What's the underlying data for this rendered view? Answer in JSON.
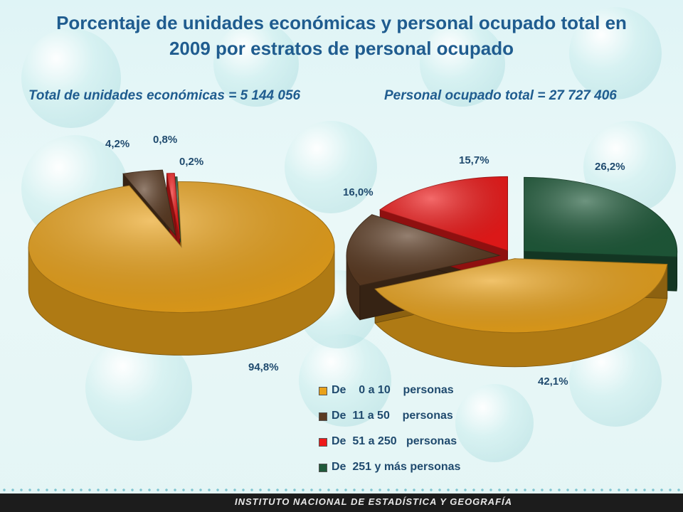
{
  "title_line1": "Porcentaje de unidades económicas y personal ocupado total en",
  "title_line2": "2009 por estratos de personal ocupado",
  "footer": "INSTITUTO NACIONAL DE ESTADÍSTICA Y GEOGRAFÍA",
  "colors": {
    "c0": "#e9a21b",
    "c1": "#5a3a22",
    "c2": "#ee1a1a",
    "c3": "#1f5a3a"
  },
  "chart_data": [
    {
      "type": "pie",
      "title": "Total de unidades económicas = 5 144 056",
      "categories": [
        "De 0 a 10 personas",
        "De 11 a 50 personas",
        "De 51 a 250 personas",
        "De 251 y más personas"
      ],
      "values": [
        94.8,
        4.2,
        0.8,
        0.2
      ],
      "value_labels": [
        "94,8%",
        "4,2%",
        "0,8%",
        "0,2%"
      ],
      "legend": "bottom-right"
    },
    {
      "type": "pie",
      "title": "Personal ocupado total = 27 727 406",
      "categories": [
        "De 0 a 10 personas",
        "De 11 a 50 personas",
        "De 51 a 250 personas",
        "De 251 y más personas"
      ],
      "values": [
        42.1,
        16.0,
        15.7,
        26.2
      ],
      "value_labels": [
        "42,1%",
        "16,0%",
        "15,7%",
        "26,2%"
      ],
      "legend": "bottom-right"
    }
  ],
  "legend": [
    {
      "prefix": "De",
      "range": "0 a 10",
      "suffix": "personas"
    },
    {
      "prefix": "De",
      "range": "11 a 50",
      "suffix": "personas"
    },
    {
      "prefix": "De",
      "range": "51 a 250",
      "suffix": "personas"
    },
    {
      "prefix": "De",
      "range": "251 y más",
      "suffix": "personas"
    }
  ]
}
